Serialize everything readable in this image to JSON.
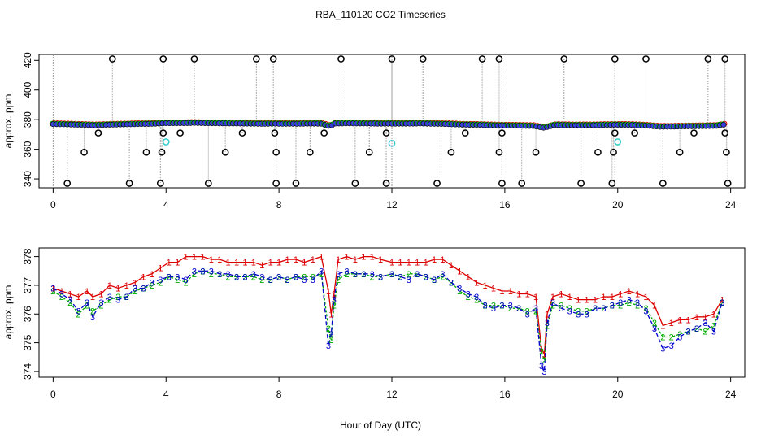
{
  "title": "RBA_110120  CO2 Timeseries",
  "xlabel": "Hour of Day (UTC)",
  "colors": {
    "series1": "#dd0000",
    "series2": "#00aa00",
    "series3": "#0000cc",
    "raw_fill": "#3a3adc",
    "raw_outline": "#000000",
    "cyan": "#33cccc",
    "drop_lines": "#9a9a9a"
  },
  "chart_data": [
    {
      "type": "scatter",
      "panel": "top",
      "ylabel": "approx. ppm",
      "xlim": [
        -0.5,
        24.5
      ],
      "ylim": [
        334,
        424
      ],
      "xticks": [
        0,
        4,
        8,
        12,
        16,
        20,
        24
      ],
      "yticks": [
        340,
        360,
        380,
        400,
        420
      ],
      "baseline_points": [
        [
          0.0,
          377.0
        ],
        [
          0.5,
          376.8
        ],
        [
          1.0,
          376.5
        ],
        [
          1.5,
          376.2
        ],
        [
          2.0,
          376.6
        ],
        [
          2.5,
          376.8
        ],
        [
          3.0,
          377.0
        ],
        [
          3.5,
          377.2
        ],
        [
          3.8,
          377.4
        ],
        [
          4.0,
          377.6
        ],
        [
          4.5,
          377.6
        ],
        [
          5.0,
          377.8
        ],
        [
          5.5,
          377.6
        ],
        [
          6.0,
          377.5
        ],
        [
          6.5,
          377.4
        ],
        [
          7.0,
          377.3
        ],
        [
          7.5,
          377.2
        ],
        [
          7.8,
          377.3
        ],
        [
          8.0,
          377.2
        ],
        [
          8.5,
          377.2
        ],
        [
          9.0,
          377.3
        ],
        [
          9.5,
          377.3
        ],
        [
          9.8,
          375.5
        ],
        [
          10.0,
          377.4
        ],
        [
          10.5,
          377.5
        ],
        [
          11.0,
          377.4
        ],
        [
          11.5,
          377.3
        ],
        [
          12.0,
          377.3
        ],
        [
          12.5,
          377.3
        ],
        [
          13.0,
          377.4
        ],
        [
          13.5,
          377.2
        ],
        [
          14.0,
          377.0
        ],
        [
          14.5,
          376.6
        ],
        [
          15.0,
          376.5
        ],
        [
          15.5,
          376.2
        ],
        [
          16.0,
          376.0
        ],
        [
          16.5,
          375.9
        ],
        [
          17.0,
          375.7
        ],
        [
          17.4,
          374.5
        ],
        [
          17.8,
          376.5
        ],
        [
          18.0,
          376.3
        ],
        [
          18.5,
          376.2
        ],
        [
          19.0,
          376.2
        ],
        [
          19.5,
          376.4
        ],
        [
          20.0,
          376.5
        ],
        [
          20.5,
          376.4
        ],
        [
          21.0,
          376.0
        ],
        [
          21.5,
          375.2
        ],
        [
          22.0,
          375.3
        ],
        [
          22.5,
          375.5
        ],
        [
          23.0,
          375.6
        ],
        [
          23.5,
          375.8
        ],
        [
          23.7,
          376.6
        ]
      ],
      "outliers_high": [
        2.1,
        3.9,
        5.0,
        7.2,
        7.8,
        10.2,
        12.0,
        13.1,
        15.2,
        15.8,
        18.1,
        19.9,
        21.0,
        23.2,
        23.8
      ],
      "outliers_low": [
        0.5,
        2.7,
        3.8,
        5.5,
        7.9,
        8.6,
        10.7,
        11.8,
        13.6,
        15.9,
        16.6,
        18.7,
        19.8,
        21.6,
        23.9
      ],
      "outliers_358": [
        1.1,
        3.3,
        3.85,
        6.1,
        7.9,
        9.1,
        11.2,
        14.1,
        15.8,
        17.1,
        19.3,
        19.85,
        22.2,
        23.85
      ],
      "outliers_371": [
        1.6,
        3.9,
        4.5,
        6.7,
        7.85,
        9.6,
        11.8,
        14.6,
        15.9,
        19.9,
        20.6,
        22.7,
        23.8
      ],
      "cyan_points": [
        [
          4.0,
          365
        ],
        [
          12.0,
          364
        ],
        [
          20.0,
          365
        ]
      ]
    },
    {
      "type": "line",
      "panel": "bottom",
      "ylabel": "approx. ppm",
      "xlim": [
        -0.5,
        24.5
      ],
      "ylim": [
        373.8,
        378.3
      ],
      "xticks": [
        0,
        4,
        8,
        12,
        16,
        20,
        24
      ],
      "yticks": [
        374,
        375,
        376,
        377,
        378
      ],
      "x": [
        0.0,
        0.3,
        0.6,
        0.9,
        1.2,
        1.4,
        1.7,
        2.0,
        2.3,
        2.6,
        2.9,
        3.2,
        3.5,
        3.8,
        4.1,
        4.4,
        4.7,
        5.0,
        5.3,
        5.6,
        5.9,
        6.2,
        6.5,
        6.8,
        7.1,
        7.4,
        7.7,
        8.0,
        8.3,
        8.6,
        8.9,
        9.2,
        9.5,
        9.75,
        9.85,
        9.95,
        10.1,
        10.4,
        10.7,
        11.0,
        11.3,
        11.6,
        12.0,
        12.3,
        12.6,
        12.9,
        13.2,
        13.5,
        13.8,
        14.1,
        14.4,
        14.7,
        15.0,
        15.3,
        15.6,
        15.9,
        16.2,
        16.5,
        16.8,
        17.1,
        17.3,
        17.4,
        17.5,
        17.7,
        18.0,
        18.3,
        18.6,
        18.9,
        19.2,
        19.5,
        19.8,
        20.1,
        20.4,
        20.7,
        21.0,
        21.3,
        21.6,
        21.9,
        22.2,
        22.5,
        22.8,
        23.1,
        23.4,
        23.7
      ],
      "series": [
        {
          "name": "1",
          "values": [
            376.9,
            376.8,
            376.7,
            376.6,
            376.8,
            376.6,
            376.7,
            377.0,
            376.9,
            377.0,
            377.1,
            377.3,
            377.4,
            377.6,
            377.8,
            377.8,
            378.0,
            378.0,
            378.0,
            377.9,
            377.9,
            377.8,
            377.8,
            377.8,
            377.8,
            377.7,
            377.8,
            377.8,
            377.9,
            377.9,
            377.8,
            377.9,
            378.0,
            376.8,
            376.0,
            376.7,
            377.9,
            378.0,
            377.9,
            378.0,
            378.0,
            377.9,
            377.8,
            377.8,
            377.8,
            377.8,
            377.8,
            377.9,
            377.9,
            377.7,
            377.5,
            377.3,
            377.1,
            377.0,
            376.9,
            376.8,
            376.8,
            376.7,
            376.7,
            376.6,
            374.8,
            374.6,
            376.0,
            376.6,
            376.7,
            376.6,
            376.5,
            376.5,
            376.5,
            376.6,
            376.6,
            376.7,
            376.8,
            376.7,
            376.6,
            376.3,
            375.6,
            375.7,
            375.8,
            375.8,
            375.9,
            375.9,
            376.0,
            376.5
          ]
        },
        {
          "name": "2",
          "values": [
            376.8,
            376.6,
            376.4,
            376.0,
            376.3,
            376.1,
            376.3,
            376.5,
            376.6,
            376.6,
            376.8,
            376.9,
            377.0,
            377.1,
            377.3,
            377.2,
            377.1,
            377.4,
            377.5,
            377.4,
            377.4,
            377.3,
            377.3,
            377.3,
            377.3,
            377.2,
            377.2,
            377.3,
            377.2,
            377.3,
            377.3,
            377.3,
            377.4,
            375.5,
            375.1,
            376.3,
            377.2,
            377.4,
            377.4,
            377.4,
            377.3,
            377.3,
            377.4,
            377.3,
            377.4,
            377.4,
            377.3,
            377.2,
            377.3,
            377.1,
            376.8,
            376.6,
            376.5,
            376.3,
            376.3,
            376.3,
            376.2,
            376.2,
            376.1,
            376.1,
            374.7,
            374.4,
            375.6,
            376.3,
            376.3,
            376.2,
            376.1,
            376.1,
            376.2,
            376.2,
            376.3,
            376.3,
            376.4,
            376.3,
            376.2,
            375.7,
            375.2,
            375.2,
            375.3,
            375.4,
            375.5,
            375.4,
            375.6,
            376.4
          ]
        },
        {
          "name": "3",
          "values": [
            376.9,
            376.7,
            376.5,
            376.1,
            376.4,
            375.9,
            376.4,
            376.6,
            376.5,
            376.6,
            376.9,
            376.9,
            377.1,
            377.2,
            377.3,
            377.3,
            377.2,
            377.5,
            377.5,
            377.5,
            377.4,
            377.4,
            377.3,
            377.3,
            377.4,
            377.3,
            377.2,
            377.3,
            377.2,
            377.3,
            377.2,
            377.2,
            377.5,
            374.9,
            375.3,
            376.5,
            377.4,
            377.5,
            377.4,
            377.4,
            377.4,
            377.3,
            377.4,
            377.3,
            377.2,
            377.4,
            377.3,
            377.2,
            377.4,
            377.1,
            376.9,
            376.7,
            376.6,
            376.3,
            376.2,
            376.3,
            376.3,
            376.2,
            376.0,
            376.2,
            374.2,
            374.0,
            375.7,
            376.4,
            376.2,
            376.1,
            376.0,
            376.0,
            376.2,
            376.2,
            376.3,
            376.4,
            376.5,
            376.4,
            376.1,
            375.5,
            374.8,
            374.9,
            375.2,
            375.4,
            375.5,
            375.7,
            375.4,
            376.4
          ]
        }
      ]
    }
  ]
}
